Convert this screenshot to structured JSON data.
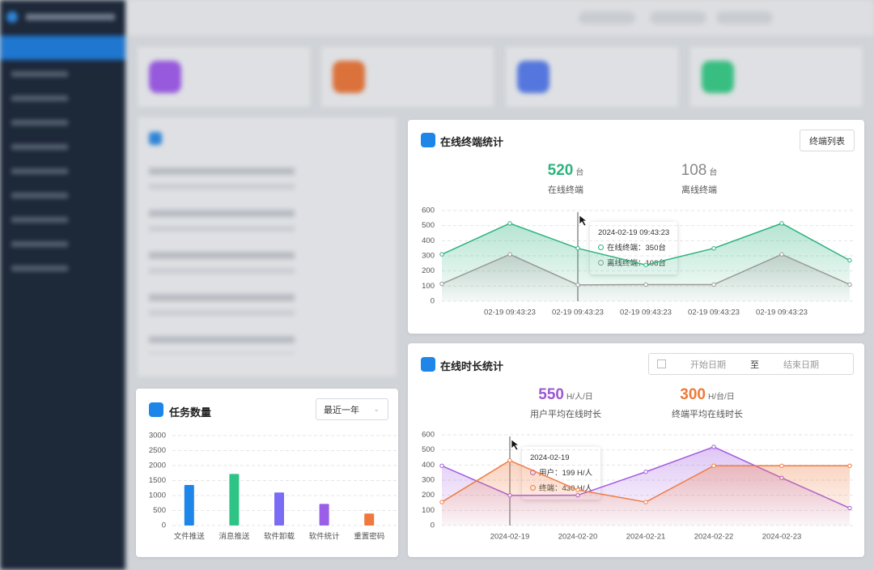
{
  "terminal_card": {
    "title": "在线终端统计",
    "button": "终端列表",
    "stats": [
      {
        "value": 520,
        "unit": "台",
        "label": "在线终端"
      },
      {
        "value": 108,
        "unit": "台",
        "label": "离线终端"
      }
    ]
  },
  "duration_card": {
    "title": "在线时长统计",
    "date_start": "开始日期",
    "date_sep": "至",
    "date_end": "结束日期",
    "stats": [
      {
        "value": 550,
        "unit": "H/人/日",
        "label": "用户平均在线时长"
      },
      {
        "value": 300,
        "unit": "H/台/日",
        "label": "终端平均在线时长"
      }
    ]
  },
  "task_card": {
    "title": "任务数量",
    "select": "最近一年"
  },
  "chart_data": [
    {
      "type": "line",
      "categories": [
        null,
        "02-19 09:43:23",
        "02-19 09:43:23",
        "02-19 09:43:23",
        "02-19 09:43:23",
        "02-19 09:43:23",
        null
      ],
      "series": [
        {
          "color": "#2db37e",
          "values": [
            310,
            515,
            350,
            240,
            350,
            515,
            270
          ]
        },
        {
          "color": "#9a9a9a",
          "values": [
            115,
            310,
            108,
            110,
            110,
            310,
            110
          ]
        }
      ],
      "ylim": [
        0,
        600
      ],
      "yticks": [
        0,
        100,
        200,
        300,
        400,
        500,
        600
      ],
      "grid": true,
      "tooltip": {
        "title": "2024-02-19 09:43:23",
        "rows": [
          "在线终端：350台",
          "离线终端：108台"
        ]
      }
    },
    {
      "type": "line",
      "categories": [
        null,
        "2024-02-19",
        "2024-02-20",
        "2024-02-21",
        "2024-02-22",
        "2024-02-23",
        null
      ],
      "series": [
        {
          "color": "#a35de0",
          "values": [
            395,
            199,
            200,
            355,
            520,
            315,
            115
          ]
        },
        {
          "color": "#ef7d45",
          "values": [
            155,
            430,
            235,
            155,
            395,
            395,
            395
          ]
        }
      ],
      "ylim": [
        0,
        600
      ],
      "yticks": [
        0,
        100,
        200,
        300,
        400,
        500,
        600
      ],
      "grid": true,
      "tooltip": {
        "title": "2024-02-19",
        "rows": [
          "用户：199 H/人",
          "终端：430 H/人"
        ]
      }
    },
    {
      "type": "bar",
      "categories": [
        "文件推送",
        "消息推送",
        "软件卸载",
        "软件统计",
        "重置密码"
      ],
      "values": [
        1350,
        1720,
        1100,
        720,
        400
      ],
      "colors": [
        "#1e86e8",
        "#2ec486",
        "#7a6cf3",
        "#9a5fe6",
        "#f0783f"
      ],
      "ylim": [
        0,
        3000
      ],
      "yticks": [
        0,
        500,
        1000,
        1500,
        2000,
        2500,
        3000
      ],
      "grid": true
    }
  ]
}
